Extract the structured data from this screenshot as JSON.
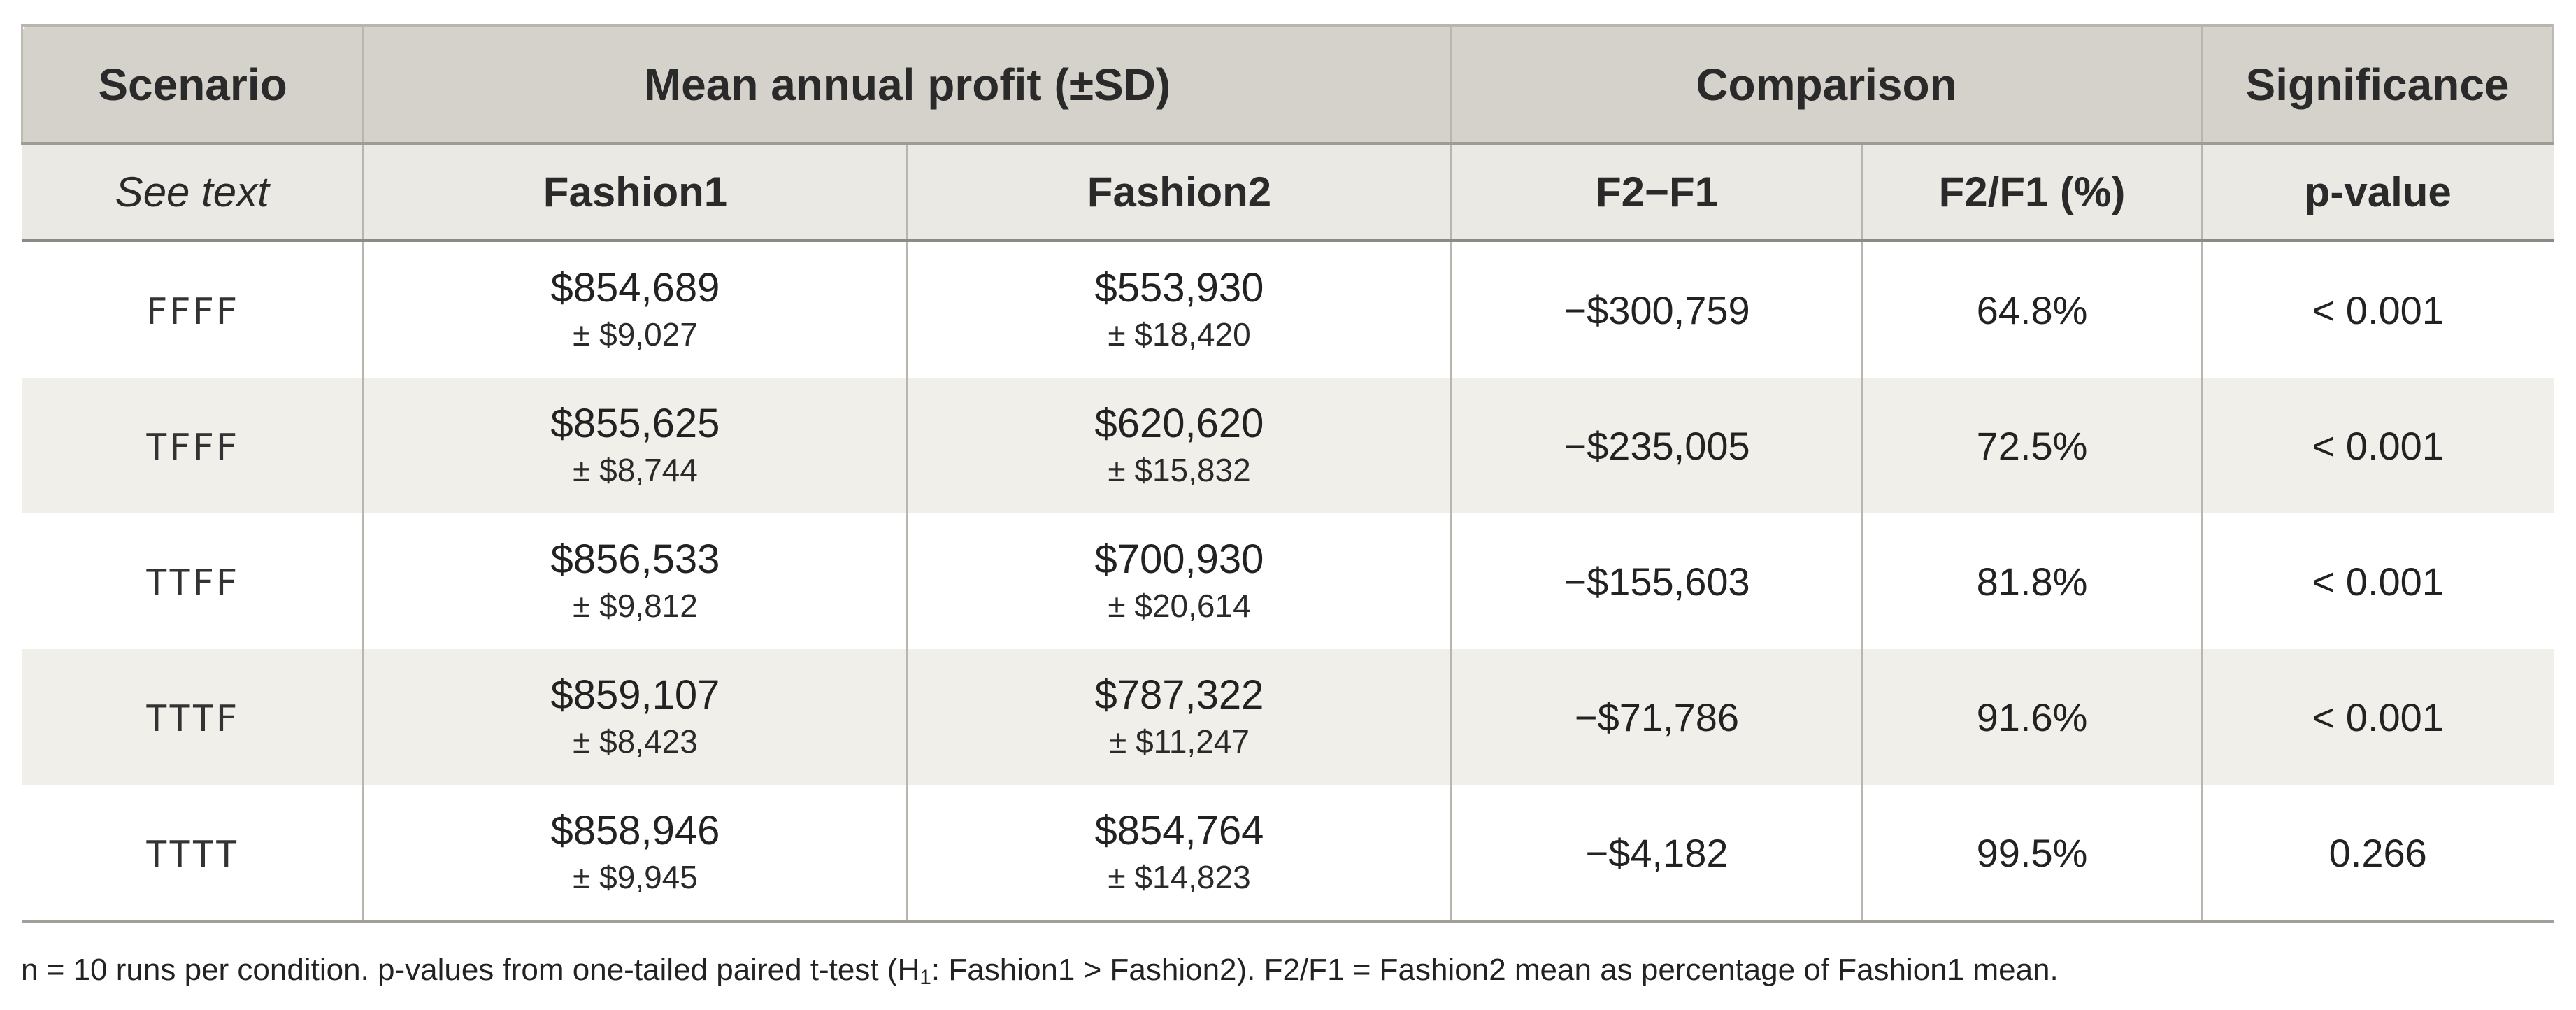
{
  "header": {
    "group": {
      "scenario": "Scenario",
      "mean_profit": "Mean annual profit (±SD)",
      "comparison": "Comparison",
      "significance": "Significance"
    },
    "sub": {
      "see_text": "See text",
      "fashion1": "Fashion1",
      "fashion2": "Fashion2",
      "diff": "F2−F1",
      "ratio": "F2/F1 (%)",
      "pvalue": "p-value"
    }
  },
  "rows": [
    {
      "scenario": "FFFF",
      "f1_mean": "$854,689",
      "f1_sd": "± $9,027",
      "f2_mean": "$553,930",
      "f2_sd": "± $18,420",
      "diff": "−$300,759",
      "ratio": "64.8%",
      "p": "< 0.001"
    },
    {
      "scenario": "TFFF",
      "f1_mean": "$855,625",
      "f1_sd": "± $8,744",
      "f2_mean": "$620,620",
      "f2_sd": "± $15,832",
      "diff": "−$235,005",
      "ratio": "72.5%",
      "p": "< 0.001"
    },
    {
      "scenario": "TTFF",
      "f1_mean": "$856,533",
      "f1_sd": "± $9,812",
      "f2_mean": "$700,930",
      "f2_sd": "± $20,614",
      "diff": "−$155,603",
      "ratio": "81.8%",
      "p": "< 0.001"
    },
    {
      "scenario": "TTTF",
      "f1_mean": "$859,107",
      "f1_sd": "± $8,423",
      "f2_mean": "$787,322",
      "f2_sd": "± $11,247",
      "diff": "−$71,786",
      "ratio": "91.6%",
      "p": "< 0.001"
    },
    {
      "scenario": "TTTT",
      "f1_mean": "$858,946",
      "f1_sd": "± $9,945",
      "f2_mean": "$854,764",
      "f2_sd": "± $14,823",
      "diff": "−$4,182",
      "ratio": "99.5%",
      "p": "0.266"
    }
  ],
  "footnote": {
    "before_sub": "n = 10 runs per condition. p-values from one-tailed paired t-test (H",
    "sub": "1",
    "after_sub": ": Fashion1 > Fashion2). F2/F1 = Fashion2 mean as percentage of Fashion1 mean."
  },
  "colors": {
    "group_header_bg": "#d5d2cb",
    "sub_header_bg": "#ebe9e3",
    "row_alt_bg": "#f1efea",
    "grid_line": "#b9b6ae"
  }
}
